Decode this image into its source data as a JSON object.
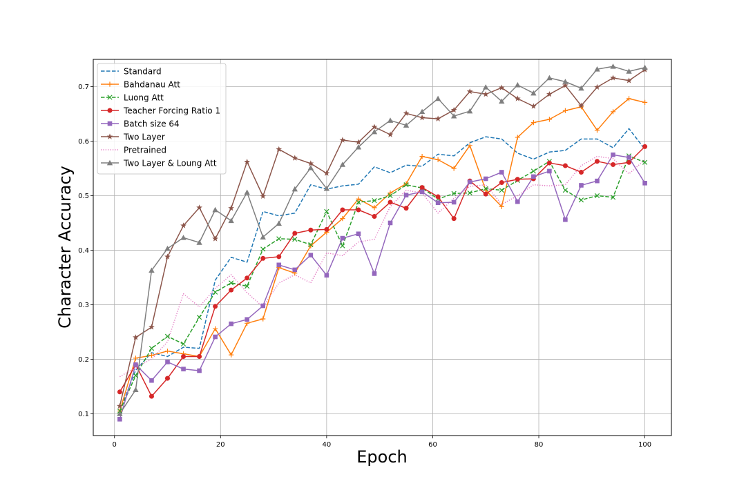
{
  "chart_data": {
    "type": "line",
    "xlabel": "Epoch",
    "ylabel": "Character Accuracy",
    "xlim": [
      -4,
      105
    ],
    "ylim": [
      0.06,
      0.75
    ],
    "xticks": [
      0,
      20,
      40,
      60,
      80,
      100
    ],
    "yticks": [
      0.1,
      0.2,
      0.3,
      0.4,
      0.5,
      0.6,
      0.7
    ],
    "xtick_labels": [
      "0",
      "20",
      "40",
      "60",
      "80",
      "100"
    ],
    "ytick_labels": [
      "0.1",
      "0.2",
      "0.3",
      "0.4",
      "0.5",
      "0.6",
      "0.7"
    ],
    "grid": true,
    "legend_position": "upper-left",
    "x": [
      1,
      4,
      7,
      10,
      13,
      16,
      19,
      22,
      25,
      28,
      31,
      34,
      37,
      40,
      43,
      46,
      49,
      52,
      55,
      58,
      61,
      64,
      67,
      70,
      73,
      76,
      79,
      82,
      85,
      88,
      91,
      94,
      97,
      100
    ],
    "series": [
      {
        "name": "Standard",
        "color": "#1f77b4",
        "linestyle": "dashed",
        "marker": "none",
        "values": [
          0.105,
          0.18,
          0.212,
          0.205,
          0.222,
          0.22,
          0.345,
          0.387,
          0.378,
          0.471,
          0.463,
          0.468,
          0.52,
          0.512,
          0.518,
          0.521,
          0.553,
          0.542,
          0.556,
          0.554,
          0.576,
          0.573,
          0.597,
          0.608,
          0.604,
          0.578,
          0.567,
          0.58,
          0.583,
          0.604,
          0.604,
          0.588,
          0.623,
          0.585
        ]
      },
      {
        "name": "Bahdanau Att",
        "color": "#ff7f0e",
        "linestyle": "solid",
        "marker": "plus",
        "values": [
          0.105,
          0.202,
          0.207,
          0.215,
          0.21,
          0.205,
          0.256,
          0.208,
          0.266,
          0.274,
          0.368,
          0.358,
          0.408,
          0.433,
          0.458,
          0.494,
          0.478,
          0.505,
          0.522,
          0.572,
          0.566,
          0.55,
          0.592,
          0.51,
          0.48,
          0.607,
          0.634,
          0.64,
          0.656,
          0.663,
          0.62,
          0.654,
          0.678,
          0.671
        ]
      },
      {
        "name": "Luong Att",
        "color": "#2ca02c",
        "linestyle": "dashed",
        "marker": "x",
        "values": [
          0.105,
          0.17,
          0.22,
          0.242,
          0.228,
          0.277,
          0.323,
          0.34,
          0.334,
          0.402,
          0.421,
          0.42,
          0.41,
          0.471,
          0.408,
          0.488,
          0.491,
          0.5,
          0.52,
          0.514,
          0.494,
          0.504,
          0.505,
          0.513,
          0.51,
          0.528,
          0.545,
          0.563,
          0.51,
          0.492,
          0.5,
          0.497,
          0.573,
          0.561
        ]
      },
      {
        "name": "Teacher Forcing Ratio 1",
        "color": "#d62728",
        "linestyle": "solid",
        "marker": "circle",
        "values": [
          0.14,
          0.19,
          0.132,
          0.165,
          0.205,
          0.205,
          0.297,
          0.327,
          0.349,
          0.385,
          0.388,
          0.431,
          0.437,
          0.438,
          0.474,
          0.474,
          0.462,
          0.488,
          0.477,
          0.515,
          0.498,
          0.458,
          0.527,
          0.503,
          0.524,
          0.53,
          0.531,
          0.56,
          0.555,
          0.543,
          0.563,
          0.557,
          0.561,
          0.59
        ]
      },
      {
        "name": "Batch size 64",
        "color": "#9467bd",
        "linestyle": "solid",
        "marker": "square",
        "values": [
          0.09,
          0.19,
          0.161,
          0.195,
          0.182,
          0.179,
          0.241,
          0.265,
          0.273,
          0.298,
          0.373,
          0.364,
          0.391,
          0.354,
          0.422,
          0.43,
          0.357,
          0.45,
          0.501,
          0.507,
          0.487,
          0.488,
          0.525,
          0.531,
          0.543,
          0.489,
          0.535,
          0.545,
          0.456,
          0.519,
          0.527,
          0.575,
          0.57,
          0.523
        ]
      },
      {
        "name": "Two Layer",
        "color": "#8c564b",
        "linestyle": "solid",
        "marker": "star",
        "values": [
          0.114,
          0.24,
          0.259,
          0.388,
          0.445,
          0.478,
          0.421,
          0.477,
          0.562,
          0.499,
          0.585,
          0.569,
          0.559,
          0.541,
          0.602,
          0.598,
          0.626,
          0.612,
          0.651,
          0.643,
          0.641,
          0.657,
          0.691,
          0.686,
          0.698,
          0.678,
          0.664,
          0.686,
          0.702,
          0.665,
          0.699,
          0.716,
          0.711,
          0.731
        ]
      },
      {
        "name": "Pretrained",
        "color": "#e377c2",
        "linestyle": "dotted",
        "marker": "none",
        "values": [
          0.168,
          0.185,
          0.2,
          0.232,
          0.32,
          0.296,
          0.33,
          0.355,
          0.322,
          0.296,
          0.34,
          0.355,
          0.34,
          0.395,
          0.39,
          0.415,
          0.42,
          0.48,
          0.51,
          0.505,
          0.468,
          0.495,
          0.517,
          0.52,
          0.484,
          0.5,
          0.52,
          0.518,
          0.52,
          0.555,
          0.572,
          0.568,
          0.54,
          0.566
        ]
      },
      {
        "name": "Two Layer & Loung Att",
        "color": "#7f7f7f",
        "linestyle": "solid",
        "marker": "triangle",
        "values": [
          0.1,
          0.144,
          0.363,
          0.403,
          0.423,
          0.414,
          0.474,
          0.454,
          0.506,
          0.424,
          0.449,
          0.512,
          0.551,
          0.513,
          0.557,
          0.589,
          0.617,
          0.638,
          0.629,
          0.654,
          0.678,
          0.646,
          0.655,
          0.699,
          0.673,
          0.703,
          0.688,
          0.716,
          0.709,
          0.697,
          0.732,
          0.737,
          0.728,
          0.735
        ]
      }
    ]
  }
}
